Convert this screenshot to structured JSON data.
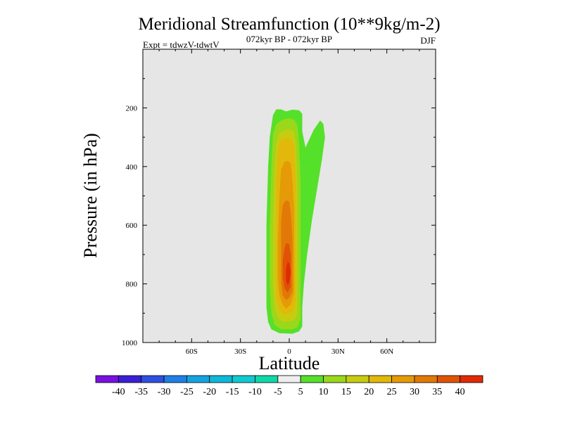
{
  "chart_data": {
    "type": "contour",
    "title": "Meridional Streamfunction (10**9kg/m-2)",
    "left_label": "Expt = tdwzV-tdwtV",
    "center_label": "072kyr BP - 072kyr BP",
    "right_label": "DJF",
    "xlabel": "Latitude",
    "ylabel": "Pressure (in hPa)",
    "xlim": [
      -90,
      90
    ],
    "ylim": [
      1000,
      0
    ],
    "x_ticks": [
      {
        "value": -60,
        "label": "60S"
      },
      {
        "value": -30,
        "label": "30S"
      },
      {
        "value": 0,
        "label": "0"
      },
      {
        "value": 30,
        "label": "30N"
      },
      {
        "value": 60,
        "label": "60N"
      }
    ],
    "y_ticks": [
      {
        "value": 200,
        "label": "200"
      },
      {
        "value": 400,
        "label": "400"
      },
      {
        "value": 600,
        "label": "600"
      },
      {
        "value": 800,
        "label": "800"
      },
      {
        "value": 1000,
        "label": "1000"
      }
    ],
    "background_color": "#e6e6e6",
    "colorbar": {
      "labels": [
        "-40",
        "-35",
        "-30",
        "-25",
        "-20",
        "-15",
        "-10",
        "-5",
        "5",
        "10",
        "15",
        "20",
        "25",
        "30",
        "35",
        "40"
      ],
      "colors": [
        "#7a10e0",
        "#3b1fd6",
        "#2f4fe0",
        "#1f7fe6",
        "#14a3e0",
        "#0fb8d8",
        "#0fcad0",
        "#10d6a8",
        "#eeeeee",
        "#55e02a",
        "#99d81a",
        "#c8cc10",
        "#e2b80a",
        "#e59a08",
        "#e27906",
        "#e05306",
        "#e02a06"
      ]
    },
    "contours": [
      {
        "level": "5",
        "color": "#55e02a",
        "points": [
          [
            -6,
            968
          ],
          [
            -11,
            955
          ],
          [
            -13,
            930
          ],
          [
            -14,
            880
          ],
          [
            -14,
            800
          ],
          [
            -14,
            600
          ],
          [
            -13,
            400
          ],
          [
            -12,
            300
          ],
          [
            -10,
            225
          ],
          [
            -8,
            205
          ],
          [
            -5,
            205
          ],
          [
            -2,
            212
          ],
          [
            2,
            206
          ],
          [
            6,
            208
          ],
          [
            8,
            220
          ],
          [
            8,
            280
          ],
          [
            10,
            335
          ],
          [
            15,
            275
          ],
          [
            19,
            243
          ],
          [
            21,
            255
          ],
          [
            22,
            300
          ],
          [
            20,
            380
          ],
          [
            17,
            480
          ],
          [
            14,
            580
          ],
          [
            11,
            700
          ],
          [
            9,
            800
          ],
          [
            8,
            880
          ],
          [
            8,
            945
          ],
          [
            6,
            962
          ],
          [
            2,
            970
          ]
        ]
      },
      {
        "level": "10",
        "color": "#99d81a",
        "points": [
          [
            -5,
            955
          ],
          [
            -9,
            940
          ],
          [
            -11,
            900
          ],
          [
            -12,
            800
          ],
          [
            -12,
            600
          ],
          [
            -11,
            400
          ],
          [
            -10,
            290
          ],
          [
            -8,
            255
          ],
          [
            -4,
            240
          ],
          [
            0,
            235
          ],
          [
            3,
            240
          ],
          [
            5,
            260
          ],
          [
            6,
            320
          ],
          [
            7,
            450
          ],
          [
            7,
            600
          ],
          [
            7,
            800
          ],
          [
            7,
            920
          ],
          [
            5,
            948
          ],
          [
            2,
            955
          ]
        ]
      },
      {
        "level": "15",
        "color": "#c8cc10",
        "points": [
          [
            -4,
            930
          ],
          [
            -7,
            915
          ],
          [
            -9,
            880
          ],
          [
            -10,
            800
          ],
          [
            -10,
            600
          ],
          [
            -9,
            400
          ],
          [
            -8,
            320
          ],
          [
            -6,
            285
          ],
          [
            -3,
            275
          ],
          [
            0,
            273
          ],
          [
            3,
            280
          ],
          [
            4,
            320
          ],
          [
            5,
            450
          ],
          [
            5,
            600
          ],
          [
            5,
            800
          ],
          [
            5,
            900
          ],
          [
            3,
            925
          ]
        ]
      },
      {
        "level": "20",
        "color": "#e2b80a",
        "points": [
          [
            -3,
            905
          ],
          [
            -6,
            888
          ],
          [
            -8,
            850
          ],
          [
            -8,
            750
          ],
          [
            -8,
            600
          ],
          [
            -8,
            450
          ],
          [
            -7,
            340
          ],
          [
            -5,
            310
          ],
          [
            -2,
            303
          ],
          [
            1,
            305
          ],
          [
            3,
            330
          ],
          [
            4,
            450
          ],
          [
            4,
            600
          ],
          [
            4,
            750
          ],
          [
            4,
            860
          ],
          [
            2,
            895
          ]
        ]
      },
      {
        "level": "25",
        "color": "#e59a08",
        "points": [
          [
            -2,
            885
          ],
          [
            -4,
            870
          ],
          [
            -6,
            840
          ],
          [
            -7,
            780
          ],
          [
            -7,
            650
          ],
          [
            -6,
            500
          ],
          [
            -5,
            410
          ],
          [
            -3,
            385
          ],
          [
            -1,
            380
          ],
          [
            1,
            390
          ],
          [
            2,
            450
          ],
          [
            3,
            550
          ],
          [
            3,
            700
          ],
          [
            3,
            830
          ],
          [
            1,
            870
          ]
        ]
      },
      {
        "level": "30",
        "color": "#e27906",
        "points": [
          [
            -2,
            855
          ],
          [
            -4,
            840
          ],
          [
            -5,
            800
          ],
          [
            -5,
            700
          ],
          [
            -5,
            590
          ],
          [
            -4,
            530
          ],
          [
            -2,
            515
          ],
          [
            0,
            520
          ],
          [
            1,
            560
          ],
          [
            2,
            650
          ],
          [
            2,
            760
          ],
          [
            2,
            825
          ],
          [
            0,
            848
          ]
        ]
      },
      {
        "level": "35",
        "color": "#e05306",
        "points": [
          [
            -1,
            830
          ],
          [
            -3,
            815
          ],
          [
            -4,
            780
          ],
          [
            -4,
            720
          ],
          [
            -3,
            680
          ],
          [
            -2,
            660
          ],
          [
            0,
            665
          ],
          [
            1,
            700
          ],
          [
            1,
            760
          ],
          [
            1,
            810
          ]
        ]
      },
      {
        "level": "40",
        "color": "#e02a06",
        "points": [
          [
            -1,
            805
          ],
          [
            -2,
            790
          ],
          [
            -2,
            750
          ],
          [
            -1,
            725
          ],
          [
            0,
            730
          ],
          [
            1,
            760
          ],
          [
            0,
            795
          ]
        ]
      }
    ]
  }
}
